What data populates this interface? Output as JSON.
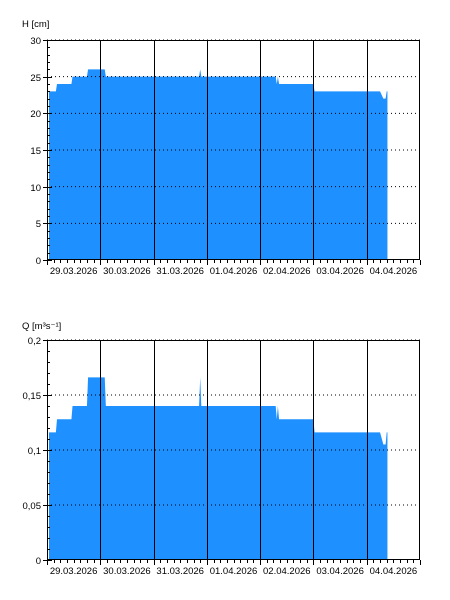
{
  "colors": {
    "fill": "#1e90ff",
    "background": "#ffffff",
    "axis": "#000000",
    "grid": "#000000"
  },
  "chart_data": [
    {
      "type": "area",
      "ylabel": "H [cm]",
      "xlabel": "",
      "ylim": [
        0,
        30
      ],
      "yticks": [
        0,
        5,
        10,
        15,
        20,
        25,
        30
      ],
      "ytick_labels": [
        "0",
        "5",
        "10",
        "15",
        "20",
        "25",
        "30"
      ],
      "xlim": [
        "2026-03-29 00:00",
        "2026-04-05 00:00"
      ],
      "xticks": [
        "2026-03-29",
        "2026-03-30",
        "2026-03-31",
        "2026-04-01",
        "2026-04-02",
        "2026-04-03",
        "2026-04-04"
      ],
      "xtick_labels": [
        "29.03.2026",
        "30.03.2026",
        "31.03.2026",
        "01.04.2026",
        "02.04.2026",
        "03.04.2026",
        "04.04.2026"
      ],
      "grid": {
        "vertical": "solid",
        "horizontal": "dotted"
      },
      "series": [
        {
          "x": [
            "2026-03-28 23:50",
            "2026-03-29 04:00",
            "2026-03-29 04:30",
            "2026-03-29 11:00",
            "2026-03-29 11:30",
            "2026-03-29 18:00",
            "2026-03-29 18:30",
            "2026-03-29 21:00",
            "2026-03-29 21:30",
            "2026-03-30 02:00",
            "2026-03-30 02:30",
            "2026-03-31 20:30",
            "2026-03-31 21:00",
            "2026-03-31 21:30",
            "2026-04-02 07:00",
            "2026-04-02 07:30",
            "2026-04-02 08:00",
            "2026-04-02 08:30",
            "2026-04-02 09:00",
            "2026-04-02 09:30",
            "2026-04-03 00:00",
            "2026-04-03 00:30",
            "2026-04-03 12:00",
            "2026-04-03 12:30",
            "2026-04-04 01:30",
            "2026-04-04 02:00",
            "2026-04-04 06:00",
            "2026-04-04 07:30",
            "2026-04-04 08:00",
            "2026-04-04 08:30",
            "2026-04-04 09:00",
            "2026-04-04 09:20"
          ],
          "values": [
            23,
            23,
            24,
            24,
            25,
            25,
            26,
            26,
            26,
            26,
            25,
            25,
            26,
            25,
            25,
            24,
            25,
            24,
            24,
            24,
            24,
            23,
            23,
            23,
            23,
            23,
            23,
            22,
            22,
            22,
            23,
            23
          ]
        }
      ]
    },
    {
      "type": "area",
      "ylabel": "Q [m³s⁻¹]",
      "xlabel": "",
      "ylim": [
        0,
        0.2
      ],
      "yticks": [
        0,
        0.05,
        0.1,
        0.15,
        0.2
      ],
      "ytick_labels": [
        "0",
        "0,05",
        "0,1",
        "0,15",
        "0,2"
      ],
      "xlim": [
        "2026-03-29 00:00",
        "2026-04-05 00:00"
      ],
      "xticks": [
        "2026-03-29",
        "2026-03-30",
        "2026-03-31",
        "2026-04-01",
        "2026-04-02",
        "2026-04-03",
        "2026-04-04"
      ],
      "xtick_labels": [
        "29.03.2026",
        "30.03.2026",
        "31.03.2026",
        "01.04.2026",
        "02.04.2026",
        "03.04.2026",
        "04.04.2026"
      ],
      "grid": {
        "vertical": "solid",
        "horizontal": "dotted"
      },
      "series": [
        {
          "x": [
            "2026-03-28 23:50",
            "2026-03-29 04:00",
            "2026-03-29 04:30",
            "2026-03-29 11:00",
            "2026-03-29 11:30",
            "2026-03-29 18:00",
            "2026-03-29 18:30",
            "2026-03-29 21:00",
            "2026-03-29 21:30",
            "2026-03-30 02:00",
            "2026-03-30 02:30",
            "2026-03-31 20:30",
            "2026-03-31 21:00",
            "2026-03-31 21:30",
            "2026-04-02 07:00",
            "2026-04-02 07:30",
            "2026-04-02 08:00",
            "2026-04-02 08:30",
            "2026-04-02 09:00",
            "2026-04-02 09:30",
            "2026-04-03 00:00",
            "2026-04-03 00:30",
            "2026-04-03 12:00",
            "2026-04-03 12:30",
            "2026-04-04 01:30",
            "2026-04-04 02:00",
            "2026-04-04 06:00",
            "2026-04-04 07:30",
            "2026-04-04 08:00",
            "2026-04-04 08:30",
            "2026-04-04 09:00",
            "2026-04-04 09:20"
          ],
          "values": [
            0.116,
            0.116,
            0.128,
            0.128,
            0.14,
            0.14,
            0.166,
            0.166,
            0.166,
            0.166,
            0.14,
            0.14,
            0.166,
            0.14,
            0.14,
            0.128,
            0.14,
            0.128,
            0.128,
            0.128,
            0.128,
            0.116,
            0.116,
            0.116,
            0.116,
            0.116,
            0.116,
            0.105,
            0.105,
            0.105,
            0.116,
            0.116
          ]
        }
      ]
    }
  ]
}
